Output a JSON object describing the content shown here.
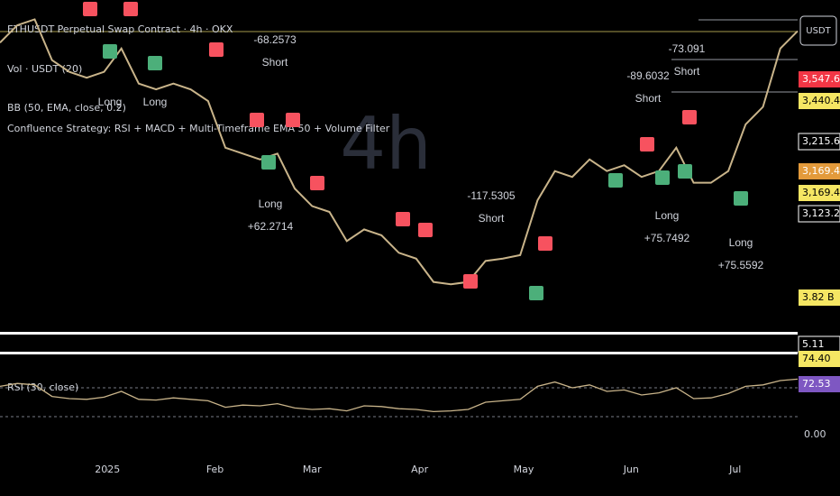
{
  "header": {
    "symbol": "ETHUSDT Perpetual Swap Contract · 4h · OKX",
    "indicators": [
      "Vol · USDT (20)",
      "BB (50, EMA, close, 0.2)",
      "Confluence Strategy: RSI + MACD + Multi-Timeframe EMA 50 + Volume Filter"
    ]
  },
  "watermark": "4h",
  "currency": "USDT",
  "price_labels": [
    {
      "text": "3,547.60",
      "color": "#f23645"
    },
    {
      "text": "3,440.41",
      "color": "#f5e663"
    },
    {
      "text": "3,215.64",
      "color": "#131722"
    },
    {
      "text": "3,169.44",
      "color": "#e39a3b"
    },
    {
      "text": "3,169.44",
      "color": "#f5e663"
    },
    {
      "text": "3,123.24",
      "color": "#131722"
    }
  ],
  "volume_label": "3.82 B",
  "lower_labels": [
    "5.11",
    "74.40"
  ],
  "rsi_title": "RSI (30, close)",
  "rsi_label": "72.53",
  "rsi_floor_label": "0.00",
  "annotations": [
    {
      "lines": [
        "Long"
      ]
    },
    {
      "lines": [
        "Long"
      ]
    },
    {
      "lines": [
        "-68.2573",
        "Short"
      ]
    },
    {
      "lines": [
        "Long",
        "+62.2714"
      ]
    },
    {
      "lines": [
        "-117.5305",
        "Short"
      ]
    },
    {
      "lines": [
        "-89.6032",
        "Short"
      ]
    },
    {
      "lines": [
        "-73.091",
        "Short"
      ]
    },
    {
      "lines": [
        "Long",
        "+75.7492"
      ]
    },
    {
      "lines": [
        "Long",
        "+75.5592"
      ]
    }
  ],
  "chart_data": {
    "type": "line",
    "color": "#c9b48a",
    "x": [
      0,
      5,
      10,
      15,
      20,
      25,
      30,
      35,
      40,
      45,
      50,
      55,
      60,
      65,
      70,
      75,
      80,
      85,
      90,
      95,
      100,
      105,
      110,
      115,
      120,
      125,
      130,
      135,
      140,
      145,
      150,
      155,
      160,
      165,
      170,
      175,
      180,
      185,
      190,
      195,
      200,
      205,
      210,
      215,
      220,
      225,
      230
    ],
    "values": [
      3650,
      3800,
      3850,
      3500,
      3400,
      3350,
      3400,
      3600,
      3300,
      3250,
      3300,
      3250,
      3150,
      2750,
      2700,
      2650,
      2700,
      2400,
      2250,
      2200,
      1950,
      2050,
      2000,
      1850,
      1800,
      1600,
      1580,
      1600,
      1780,
      1800,
      1830,
      2300,
      2550,
      2500,
      2650,
      2550,
      2600,
      2500,
      2550,
      2750,
      2450,
      2450,
      2550,
      2950,
      3100,
      3600,
      3750
    ],
    "rsi": [
      62,
      66,
      64,
      48,
      45,
      44,
      47,
      55,
      44,
      43,
      46,
      44,
      42,
      33,
      36,
      35,
      38,
      32,
      30,
      31,
      28,
      35,
      34,
      31,
      30,
      27,
      28,
      30,
      40,
      42,
      44,
      62,
      68,
      60,
      64,
      55,
      57,
      50,
      53,
      60,
      45,
      46,
      52,
      62,
      64,
      70,
      72
    ],
    "xlim": [
      0,
      230
    ],
    "ylim": [
      1350,
      3900
    ],
    "rsi_lim": [
      0,
      100
    ],
    "xticks": [
      {
        "value": 31,
        "label": "2025"
      },
      {
        "value": 62,
        "label": "Feb"
      },
      {
        "value": 90,
        "label": "Mar"
      },
      {
        "value": 121,
        "label": "Apr"
      },
      {
        "value": 151,
        "label": "May"
      },
      {
        "value": 182,
        "label": "Jun"
      },
      {
        "value": 212,
        "label": "Jul"
      }
    ]
  }
}
